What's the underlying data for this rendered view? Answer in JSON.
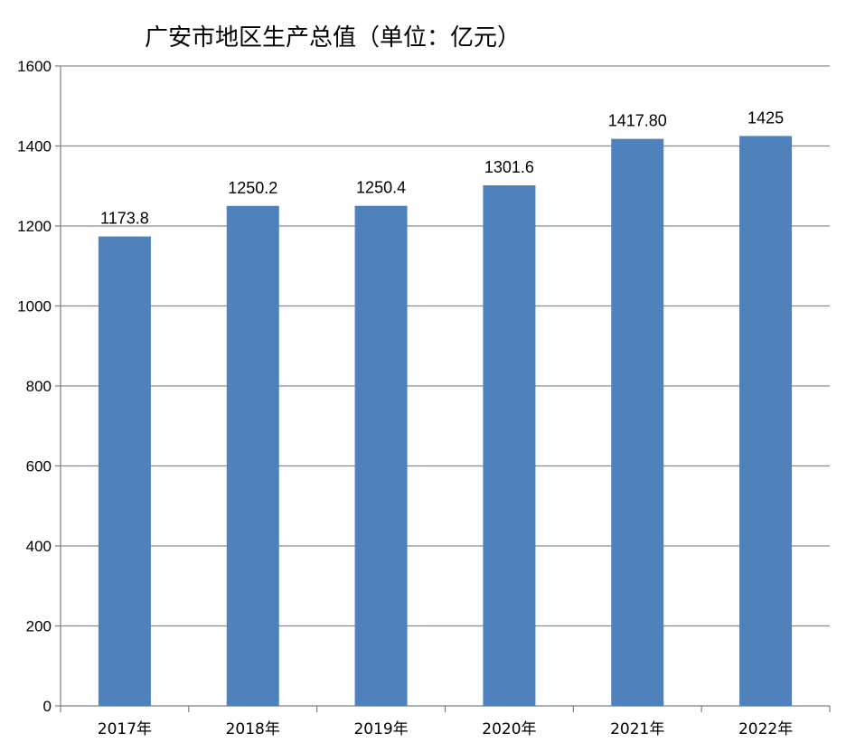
{
  "chart_data": {
    "type": "bar",
    "title": "广安市地区生产总值（单位：亿元）",
    "categories": [
      "2017年",
      "2018年",
      "2019年",
      "2020年",
      "2021年",
      "2022年"
    ],
    "values": [
      1173.8,
      1250.2,
      1250.4,
      1301.6,
      1417.8,
      1425
    ],
    "data_labels": [
      "1173.8",
      "1250.2",
      "1250.4",
      "1301.6",
      "1417.80",
      "1425"
    ],
    "ylim": [
      0,
      1600
    ],
    "yticks": [
      0,
      200,
      400,
      600,
      800,
      1000,
      1200,
      1400,
      1600
    ],
    "xlabel": "",
    "ylabel": "",
    "grid": true,
    "legend": "none",
    "bar_color": "#4f81bd"
  }
}
